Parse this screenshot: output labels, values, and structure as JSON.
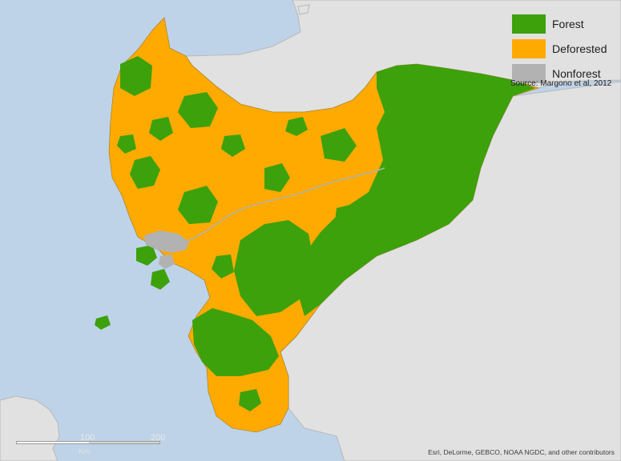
{
  "legend": {
    "items": [
      {
        "label": "Forest",
        "color": "#3ca10b"
      },
      {
        "label": "Deforested",
        "color": "#ffaa00"
      },
      {
        "label": "Nonforest",
        "color": "#b2b2b2"
      }
    ],
    "source": "Source: Margono et al, 2012"
  },
  "attribution": "Esri, DeLorme, GEBCO, NOAA NGDC, and other contributors",
  "scalebar": {
    "ticks": [
      "100",
      "200"
    ],
    "unit": "Km"
  },
  "colors": {
    "sea": "#bed3e8",
    "land": "#e1e1e1",
    "forest": "#3ca10b",
    "deforested": "#ffaa00",
    "nonforest": "#b2b2b2"
  }
}
